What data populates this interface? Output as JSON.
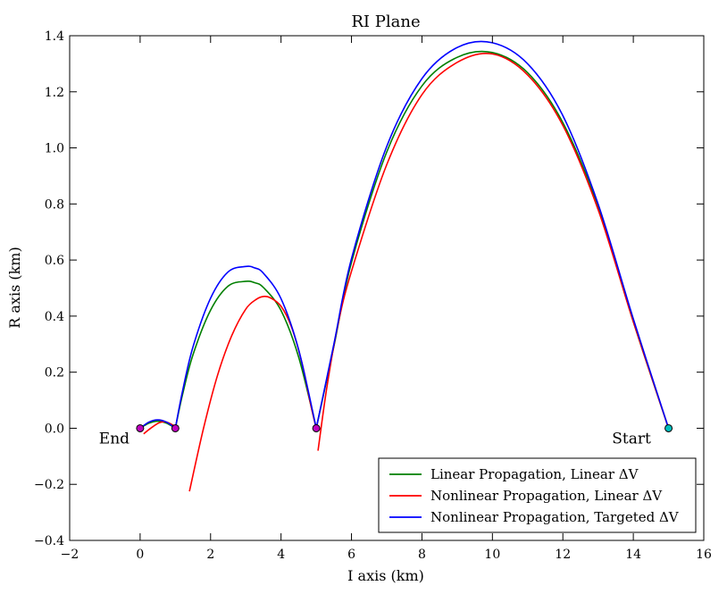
{
  "chart_data": {
    "type": "line",
    "title": "RI Plane",
    "xlabel": "I axis (km)",
    "ylabel": "R axis (km)",
    "xlim": [
      -2,
      16
    ],
    "ylim": [
      -0.4,
      1.4
    ],
    "xticks": [
      -2,
      0,
      2,
      4,
      6,
      8,
      10,
      12,
      14,
      16
    ],
    "xtick_labels": [
      "−2",
      "0",
      "2",
      "4",
      "6",
      "8",
      "10",
      "12",
      "14",
      "16"
    ],
    "yticks": [
      -0.4,
      -0.2,
      0.0,
      0.2,
      0.4,
      0.6,
      0.8,
      1.0,
      1.2,
      1.4
    ],
    "ytick_labels": [
      "−0.4",
      "−0.2",
      "0.0",
      "0.2",
      "0.4",
      "0.6",
      "0.8",
      "1.0",
      "1.2",
      "1.4"
    ],
    "grid": false,
    "legend_position": "lower-right",
    "series": [
      {
        "name": "Linear Propagation, Linear ΔV",
        "color": "#007f00",
        "x": [
          0,
          0.25,
          0.5,
          0.75,
          1.0,
          1.2,
          1.5,
          2.0,
          2.5,
          3.0,
          3.25,
          3.5,
          4.0,
          4.5,
          5.0,
          5.5,
          6.0,
          7.0,
          8.0,
          9.0,
          10.0,
          11.0,
          12.0,
          13.0,
          14.0,
          15.0
        ],
        "y": [
          0.0,
          0.018,
          0.025,
          0.018,
          0.0,
          0.118,
          0.262,
          0.421,
          0.507,
          0.524,
          0.519,
          0.502,
          0.42,
          0.254,
          0.0,
          0.292,
          0.592,
          0.985,
          1.221,
          1.323,
          1.34,
          1.268,
          1.09,
          0.79,
          0.38,
          0.0
        ]
      },
      {
        "name": "Nonlinear Propagation, Linear ΔV",
        "color": "#ff0000",
        "x": [
          0.1,
          0.3,
          0.55,
          0.75,
          0.95,
          1.4,
          1.8,
          2.2,
          2.6,
          3.0,
          3.3,
          3.5,
          3.7,
          4.0,
          4.3,
          4.6,
          4.85,
          5.0,
          5.05,
          5.3,
          5.6,
          6.0,
          7.0,
          8.0,
          9.0,
          10.0,
          11.0,
          12.0,
          13.0,
          14.0,
          15.0
        ],
        "y": [
          -0.02,
          0.0,
          0.02,
          0.022,
          0.01,
          -0.225,
          0.0,
          0.19,
          0.33,
          0.425,
          0.46,
          0.47,
          0.465,
          0.435,
          0.36,
          0.23,
          0.08,
          0.0,
          -0.08,
          0.145,
          0.36,
          0.56,
          0.94,
          1.19,
          1.305,
          1.335,
          1.26,
          1.08,
          0.78,
          0.38,
          0.0
        ]
      },
      {
        "name": "Nonlinear Propagation, Targeted ΔV",
        "color": "#0000ff",
        "x": [
          0,
          0.25,
          0.5,
          0.75,
          1.0,
          1.2,
          1.5,
          2.0,
          2.5,
          3.0,
          3.25,
          3.5,
          4.0,
          4.5,
          5.0,
          5.5,
          6.0,
          7.0,
          8.0,
          9.0,
          10.0,
          11.0,
          12.0,
          13.0,
          14.0,
          15.0
        ],
        "y": [
          0.0,
          0.022,
          0.03,
          0.022,
          0.0,
          0.13,
          0.29,
          0.464,
          0.558,
          0.577,
          0.572,
          0.553,
          0.462,
          0.28,
          0.0,
          0.3,
          0.605,
          1.005,
          1.247,
          1.358,
          1.375,
          1.3,
          1.115,
          0.8,
          0.39,
          0.0
        ]
      }
    ],
    "markers": [
      {
        "x": 0,
        "y": 0,
        "color": "#bf00bf"
      },
      {
        "x": 1,
        "y": 0,
        "color": "#bf00bf"
      },
      {
        "x": 5,
        "y": 0,
        "color": "#bf00bf"
      },
      {
        "x": 15,
        "y": 0,
        "color": "#00bfbf"
      }
    ],
    "annotations": [
      {
        "text": "End",
        "x": -0.3,
        "y": -0.02,
        "anchor": "end"
      },
      {
        "text": "Start",
        "x": 14.5,
        "y": -0.02,
        "anchor": "end"
      }
    ]
  }
}
